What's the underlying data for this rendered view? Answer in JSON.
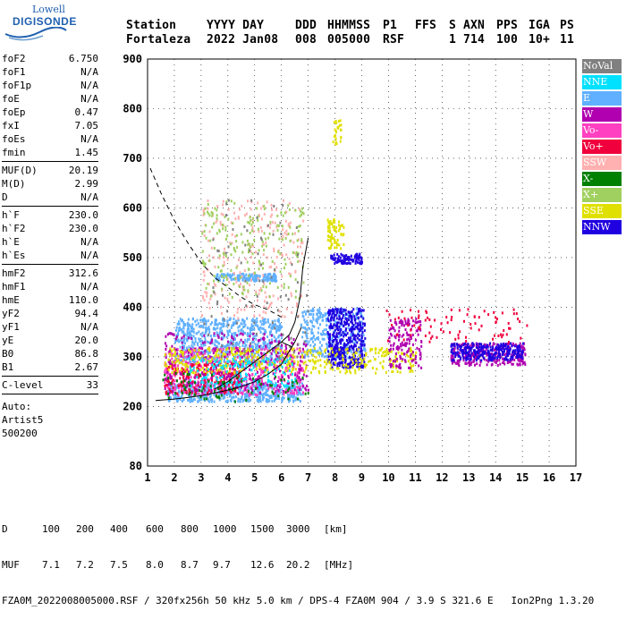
{
  "logo": {
    "line1": "Lowell",
    "line2": "DIGISONDE"
  },
  "header": {
    "row1": [
      "Station",
      "YYYY DAY",
      "DDD",
      "HHMMSS",
      "P1",
      "FFS",
      "S",
      "AXN",
      "PPS",
      "IGA",
      "PS"
    ],
    "row2": [
      "Fortaleza",
      "2022 Jan08",
      "008",
      "005000",
      "RSF",
      "1",
      "714",
      "100",
      "10+",
      "11"
    ]
  },
  "parameters": [
    [
      {
        "label": "foF2",
        "value": "6.750"
      },
      {
        "label": "foF1",
        "value": "N/A"
      },
      {
        "label": "foF1p",
        "value": "N/A"
      },
      {
        "label": "foE",
        "value": "N/A"
      },
      {
        "label": "foEp",
        "value": "0.47"
      },
      {
        "label": "fxI",
        "value": "7.05"
      },
      {
        "label": "foEs",
        "value": "N/A"
      },
      {
        "label": "fmin",
        "value": "1.45"
      }
    ],
    [
      {
        "label": "MUF(D)",
        "value": "20.19"
      },
      {
        "label": "M(D)",
        "value": "2.99"
      },
      {
        "label": "D",
        "value": "N/A"
      }
    ],
    [
      {
        "label": "h`F",
        "value": "230.0"
      },
      {
        "label": "h`F2",
        "value": "230.0"
      },
      {
        "label": "h`E",
        "value": "N/A"
      },
      {
        "label": "h`Es",
        "value": "N/A"
      }
    ],
    [
      {
        "label": "hmF2",
        "value": "312.6"
      },
      {
        "label": "hmF1",
        "value": "N/A"
      },
      {
        "label": "hmE",
        "value": "110.0"
      },
      {
        "label": "yF2",
        "value": "94.4"
      },
      {
        "label": "yF1",
        "value": "N/A"
      },
      {
        "label": "yE",
        "value": "20.0"
      },
      {
        "label": "B0",
        "value": "86.8"
      },
      {
        "label": "B1",
        "value": "2.67"
      }
    ],
    [
      {
        "label": "C-level",
        "value": "33"
      }
    ]
  ],
  "auto_lines": [
    "Auto:",
    "Artist5",
    "500200"
  ],
  "legend": [
    {
      "label": "NoVal",
      "color": "#808080"
    },
    {
      "label": "NNE",
      "color": "#00e0ff"
    },
    {
      "label": "E",
      "color": "#60b0ff"
    },
    {
      "label": "W",
      "color": "#b000b0"
    },
    {
      "label": "Vo-",
      "color": "#ff40c0"
    },
    {
      "label": "Vo+",
      "color": "#f0003c"
    },
    {
      "label": "SSW",
      "color": "#ffb0b0"
    },
    {
      "label": "X-",
      "color": "#008000"
    },
    {
      "label": "X+",
      "color": "#a0d060"
    },
    {
      "label": "SSE",
      "color": "#e0e000"
    },
    {
      "label": "NNW",
      "color": "#2000e0"
    }
  ],
  "bottom": {
    "row_d_label": "D",
    "row_d_values": [
      "100",
      "200",
      "400",
      "600",
      "800",
      "1000",
      "1500",
      "3000",
      "[km]"
    ],
    "row_muf_label": "MUF",
    "row_muf_values": [
      "7.1",
      "7.2",
      "7.5",
      "8.0",
      "8.7",
      "9.7",
      "12.6",
      "20.2",
      "[MHz]"
    ],
    "footer": "FZA0M_2022008005000.RSF / 320fx256h 50 kHz 5.0 km / DPS-4 FZA0M 904 / 3.9 S 321.6 E   Ion2Png 1.3.20"
  },
  "chart_data": {
    "type": "scatter",
    "xlim": [
      1,
      17
    ],
    "ylim": [
      80,
      900
    ],
    "xticks": [
      1,
      2,
      3,
      4,
      5,
      6,
      7,
      8,
      9,
      10,
      11,
      12,
      13,
      14,
      15,
      16,
      17
    ],
    "yticks": [
      80,
      200,
      300,
      400,
      500,
      600,
      700,
      800,
      900
    ],
    "grid": true,
    "legend_position": "right",
    "clusters": [
      {
        "name": "E",
        "color": "#60b0ff",
        "xmin": 1.7,
        "xmax": 6.8,
        "ymin": 212,
        "ymax": 250,
        "n": 520
      },
      {
        "name": "E",
        "color": "#60b0ff",
        "xmin": 2.0,
        "xmax": 6.0,
        "ymin": 290,
        "ymax": 380,
        "n": 700
      },
      {
        "name": "E",
        "color": "#60b0ff",
        "xmin": 3.5,
        "xmax": 5.8,
        "ymin": 455,
        "ymax": 470,
        "n": 160
      },
      {
        "name": "E",
        "color": "#60b0ff",
        "xmin": 6.7,
        "xmax": 9.1,
        "ymin": 300,
        "ymax": 400,
        "n": 320
      },
      {
        "name": "Vo-",
        "color": "#ff40c0",
        "xmin": 1.6,
        "xmax": 6.8,
        "ymin": 225,
        "ymax": 320,
        "n": 520
      },
      {
        "name": "Vo+",
        "color": "#f0003c",
        "xmin": 1.6,
        "xmax": 4.5,
        "ymin": 228,
        "ymax": 290,
        "n": 220
      },
      {
        "name": "W",
        "color": "#b000b0",
        "xmin": 1.6,
        "xmax": 7.0,
        "ymin": 230,
        "ymax": 350,
        "n": 320
      },
      {
        "name": "W",
        "color": "#b000b0",
        "xmin": 12.3,
        "xmax": 15.1,
        "ymin": 285,
        "ymax": 330,
        "n": 260
      },
      {
        "name": "NNW",
        "color": "#2000e0",
        "xmin": 7.7,
        "xmax": 9.1,
        "ymin": 280,
        "ymax": 400,
        "n": 420
      },
      {
        "name": "NNW",
        "color": "#2000e0",
        "xmin": 7.8,
        "xmax": 9.0,
        "ymin": 490,
        "ymax": 510,
        "n": 90
      },
      {
        "name": "NNW",
        "color": "#2000e0",
        "xmin": 12.3,
        "xmax": 15.0,
        "ymin": 295,
        "ymax": 330,
        "n": 260
      },
      {
        "name": "SSE",
        "color": "#e0e000",
        "xmin": 1.6,
        "xmax": 11.0,
        "ymin": 270,
        "ymax": 320,
        "n": 420
      },
      {
        "name": "SSE",
        "color": "#e0e000",
        "xmin": 7.7,
        "xmax": 8.3,
        "ymin": 520,
        "ymax": 580,
        "n": 70
      },
      {
        "name": "SSE",
        "color": "#e0e000",
        "xmin": 7.9,
        "xmax": 8.2,
        "ymin": 730,
        "ymax": 780,
        "n": 25
      },
      {
        "name": "NNE",
        "color": "#00e0ff",
        "xmin": 2.5,
        "xmax": 6.5,
        "ymin": 240,
        "ymax": 300,
        "n": 160
      },
      {
        "name": "SSW",
        "color": "#ffb0b0",
        "xmin": 3.0,
        "xmax": 6.8,
        "ymin": 380,
        "ymax": 620,
        "n": 240
      },
      {
        "name": "X+",
        "color": "#a0d060",
        "xmin": 3.0,
        "xmax": 6.8,
        "ymin": 420,
        "ymax": 620,
        "n": 200
      },
      {
        "name": "X-",
        "color": "#008000",
        "xmin": 1.5,
        "xmax": 7.0,
        "ymin": 210,
        "ymax": 270,
        "n": 80
      },
      {
        "name": "NoVal",
        "color": "#808080",
        "xmin": 3.0,
        "xmax": 7.0,
        "ymin": 300,
        "ymax": 620,
        "n": 80
      },
      {
        "name": "W",
        "color": "#b000b0",
        "xmin": 10.0,
        "xmax": 11.2,
        "ymin": 280,
        "ymax": 380,
        "n": 150
      },
      {
        "name": "Vo+",
        "color": "#f0003c",
        "xmin": 9.8,
        "xmax": 15.2,
        "ymin": 330,
        "ymax": 400,
        "n": 90
      }
    ],
    "curves": [
      {
        "name": "profile",
        "style": "dashed",
        "x": [
          1.1,
          1.5,
          2.0,
          2.5,
          3.0,
          3.5,
          4.0,
          4.5,
          5.0,
          5.5,
          6.0
        ],
        "y": [
          680,
          630,
          575,
          530,
          490,
          460,
          440,
          420,
          405,
          395,
          380
        ]
      },
      {
        "name": "trace",
        "style": "solid",
        "x": [
          1.3,
          2.0,
          2.5,
          3.0,
          3.5,
          4.0,
          4.5,
          5.0,
          5.5,
          6.0,
          6.5,
          6.75
        ],
        "y": [
          212,
          215,
          218,
          222,
          227,
          233,
          240,
          250,
          265,
          285,
          330,
          360
        ]
      },
      {
        "name": "trace",
        "style": "solid",
        "x": [
          6.0,
          6.3,
          6.5,
          6.7,
          6.8,
          7.0
        ],
        "y": [
          330,
          345,
          370,
          420,
          480,
          540
        ]
      },
      {
        "name": "trace",
        "style": "solid",
        "x": [
          3.5,
          4.0,
          4.5,
          5.0,
          5.5,
          6.0,
          6.4
        ],
        "y": [
          235,
          250,
          270,
          290,
          310,
          330,
          320
        ]
      }
    ]
  }
}
